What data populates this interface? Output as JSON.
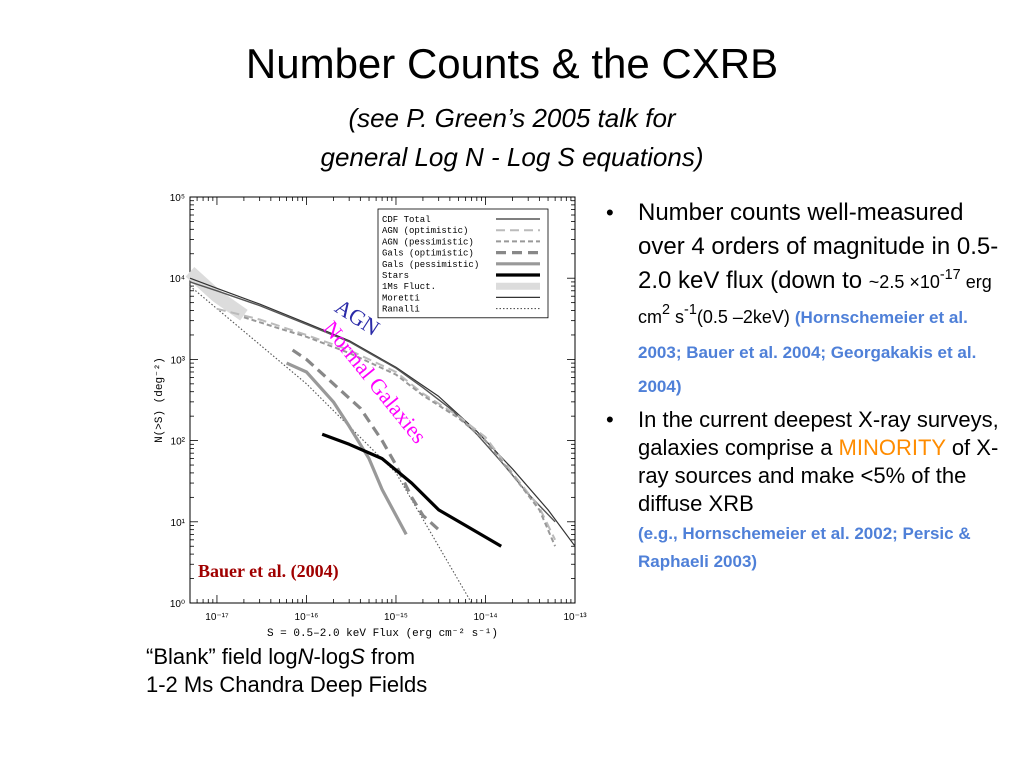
{
  "slide": {
    "title": "Number Counts  & the CXRB",
    "subtitle_line1": "(see P. Green’s 2005 talk for",
    "subtitle_line2": "general Log N - Log S equations)",
    "caption_line1_prefix": "“Blank” field log",
    "caption_N": "N",
    "caption_mid": "-log",
    "caption_S": "S",
    "caption_suffix": " from",
    "caption_line2": "1-2 Ms Chandra Deep Fields"
  },
  "bullets": {
    "b1_text": "Number counts well-measured over 4 orders of magnitude in 0.5-2.0 keV flux (down to ",
    "b1_tilde": "~2.5 ×10",
    "b1_exp1": "-17",
    "b1_unit": " erg cm",
    "b1_exp2": "2",
    "b1_s": " s",
    "b1_exp3": "-1",
    "b1_band": "(0.5 –2keV) ",
    "b1_ref": "(Hornschemeier et al. 2003; Bauer et al. 2004; Georgakakis et al. 2004)",
    "b2_text1": "In the current deepest X-ray surveys, galaxies comprise a ",
    "b2_minority": "MINORITY",
    "b2_text2": " of X-ray sources and make <5% of the diffuse XRB",
    "b2_ref": "(e.g., Hornschemeier et al. 2002; Persic & Raphaeli 2003)"
  },
  "colors": {
    "agn_label": "#2a2aa8",
    "galaxies_label": "#ff00ff",
    "citation": "#a00000",
    "ref_blue": "#4f80d8",
    "minority": "#ff8c00"
  },
  "chart_data": {
    "type": "line",
    "xlabel": "S = 0.5–2.0 keV Flux (erg cm⁻² s⁻¹)",
    "ylabel": "N(>S) (deg⁻²)",
    "xscale": "log",
    "yscale": "log",
    "xlim": [
      5e-18,
      1e-13
    ],
    "ylim": [
      1,
      100000
    ],
    "x_ticks": [
      1e-17,
      1e-16,
      1e-15,
      1e-14,
      1e-13
    ],
    "y_ticks": [
      1,
      10,
      100,
      1000,
      10000,
      100000
    ],
    "x_tick_labels": [
      "10⁻¹⁷",
      "10⁻¹⁶",
      "10⁻¹⁵",
      "10⁻¹⁴",
      "10⁻¹³"
    ],
    "y_tick_labels": [
      "10⁰",
      "10¹",
      "10²",
      "10³",
      "10⁴",
      "10⁵"
    ],
    "legend_position": "top-right",
    "annotations": {
      "agn": "AGN",
      "galaxies": "Normal Galaxies",
      "citation": "Bauer et al. (2004)"
    },
    "series": [
      {
        "name": "CDF  Total",
        "style": "total",
        "points": [
          [
            5e-18,
            9000
          ],
          [
            1e-17,
            7000
          ],
          [
            3e-17,
            4600
          ],
          [
            1e-16,
            2700
          ],
          [
            3e-16,
            1650
          ],
          [
            1e-15,
            780
          ],
          [
            2e-15,
            450
          ],
          [
            4e-15,
            250
          ],
          [
            8e-15,
            120
          ],
          [
            1.5e-14,
            55
          ],
          [
            3e-14,
            22
          ],
          [
            6e-14,
            10
          ]
        ]
      },
      {
        "name": "AGN  (optimistic)",
        "style": "agn-opt",
        "points": [
          [
            1e-17,
            4200
          ],
          [
            3e-17,
            3100
          ],
          [
            1e-16,
            2000
          ],
          [
            3e-16,
            1300
          ],
          [
            1e-15,
            700
          ],
          [
            2e-15,
            380
          ],
          [
            5e-15,
            200
          ],
          [
            1e-14,
            110
          ],
          [
            2e-14,
            40
          ],
          [
            4e-14,
            15
          ],
          [
            6e-14,
            6
          ]
        ]
      },
      {
        "name": "AGN  (pessimistic)",
        "style": "agn-pess",
        "points": [
          [
            2e-17,
            3300
          ],
          [
            5e-17,
            2400
          ],
          [
            1e-16,
            1900
          ],
          [
            3e-16,
            1200
          ],
          [
            1e-15,
            650
          ],
          [
            2e-15,
            360
          ],
          [
            5e-15,
            190
          ],
          [
            1e-14,
            100
          ],
          [
            2e-14,
            38
          ],
          [
            4e-14,
            14
          ],
          [
            6e-14,
            5
          ]
        ]
      },
      {
        "name": "Gals  (optimistic)",
        "style": "gals-opt",
        "points": [
          [
            7e-17,
            1300
          ],
          [
            1e-16,
            1000
          ],
          [
            2e-16,
            500
          ],
          [
            4e-16,
            250
          ],
          [
            7e-16,
            100
          ],
          [
            1e-15,
            50
          ],
          [
            1.5e-15,
            20
          ],
          [
            2e-15,
            12
          ],
          [
            3e-15,
            8
          ]
        ]
      },
      {
        "name": "Gals  (pessimistic)",
        "style": "gals-pess",
        "points": [
          [
            6e-17,
            900
          ],
          [
            1e-16,
            700
          ],
          [
            2e-16,
            300
          ],
          [
            3e-16,
            150
          ],
          [
            5e-16,
            60
          ],
          [
            7e-16,
            25
          ],
          [
            1e-15,
            12
          ],
          [
            1.3e-15,
            7
          ]
        ]
      },
      {
        "name": "Stars",
        "style": "stars",
        "points": [
          [
            1.5e-16,
            120
          ],
          [
            3e-16,
            90
          ],
          [
            7e-16,
            60
          ],
          [
            1.5e-15,
            30
          ],
          [
            3e-15,
            14
          ],
          [
            6e-15,
            9
          ],
          [
            1.5e-14,
            5
          ]
        ]
      },
      {
        "name": "1Ms  Fluct.",
        "style": "fluct",
        "points": [
          [
            5e-18,
            12000
          ],
          [
            1e-17,
            6000
          ],
          [
            2e-17,
            3500
          ]
        ]
      },
      {
        "name": "Moretti",
        "style": "moretti",
        "points": [
          [
            5e-18,
            10000
          ],
          [
            1e-17,
            7500
          ],
          [
            3e-17,
            4800
          ],
          [
            1e-16,
            2800
          ],
          [
            3e-16,
            1700
          ],
          [
            1e-15,
            800
          ],
          [
            3e-15,
            350
          ],
          [
            8e-15,
            130
          ],
          [
            2e-14,
            45
          ],
          [
            5e-14,
            14
          ],
          [
            1e-13,
            5
          ]
        ]
      },
      {
        "name": "Ranalli",
        "style": "ranalli",
        "points": [
          [
            5e-18,
            8000
          ],
          [
            1e-16,
            500
          ],
          [
            1e-15,
            40
          ],
          [
            7e-15,
            1
          ]
        ]
      }
    ]
  }
}
